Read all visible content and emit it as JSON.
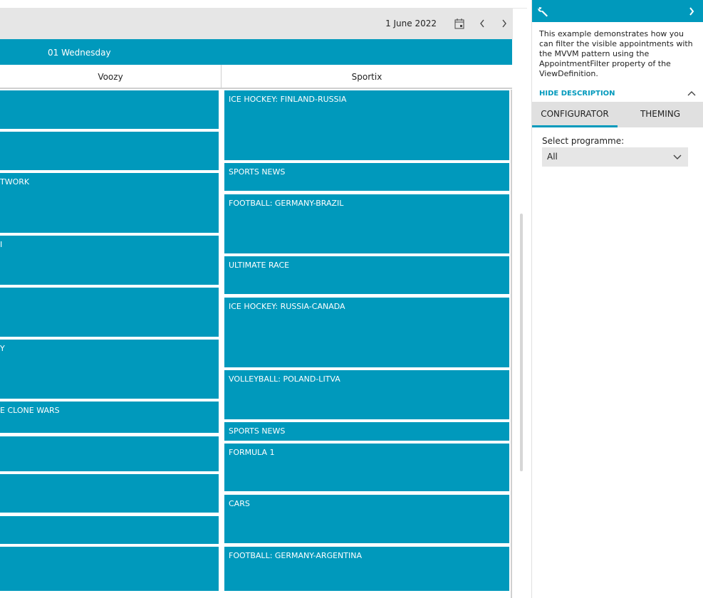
{
  "toolbar": {
    "date": "1 June 2022",
    "calendar_icon": "calendar-icon",
    "prev_icon": "chevron-left-icon",
    "next_icon": "chevron-right-icon"
  },
  "day_header": "01 Wednesday",
  "resources": [
    "Voozy",
    "Sportix"
  ],
  "appointments": {
    "voozy": [
      "",
      "",
      "TWORK",
      "I",
      "",
      "Y",
      "E CLONE WARS",
      "",
      "",
      "",
      ""
    ],
    "sportix": [
      "ICE HOCKEY: FINLAND-RUSSIA",
      "SPORTS NEWS",
      "FOOTBALL: GERMANY-BRAZIL",
      "ULTIMATE RACE",
      "ICE HOCKEY: RUSSIA-CANADA",
      "VOLLEYBALL: POLAND-LITVA",
      "SPORTS NEWS",
      "FORMULA 1",
      "CARS",
      "FOOTBALL: GERMANY-ARGENTINA"
    ]
  },
  "colors": {
    "accent": "#0099bc"
  },
  "panel": {
    "description": "This example demonstrates how you can filter the visible appointments with the MVVM pattern using the AppointmentFilter property of the ViewDefinition.",
    "hide_label": "HIDE DESCRIPTION",
    "tabs": [
      "CONFIGURATOR",
      "THEMING"
    ],
    "select_label": "Select programme:",
    "select_value": "All"
  }
}
